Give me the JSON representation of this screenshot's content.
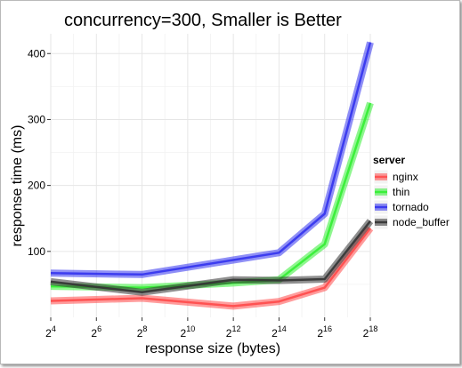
{
  "chart_data": {
    "type": "line",
    "title": "concurrency=300, Smaller is Better",
    "xlabel": "response size (bytes)",
    "ylabel": "response time (ms)",
    "x_scale": "log2",
    "x_ticks": [
      {
        "base": "2",
        "exp": "4",
        "value": 16
      },
      {
        "base": "2",
        "exp": "6",
        "value": 64
      },
      {
        "base": "2",
        "exp": "8",
        "value": 256
      },
      {
        "base": "2",
        "exp": "10",
        "value": 1024
      },
      {
        "base": "2",
        "exp": "12",
        "value": 4096
      },
      {
        "base": "2",
        "exp": "14",
        "value": 16384
      },
      {
        "base": "2",
        "exp": "16",
        "value": 65536
      },
      {
        "base": "2",
        "exp": "18",
        "value": 262144
      }
    ],
    "xlim": [
      16,
      262144
    ],
    "y_ticks": [
      100,
      200,
      300,
      400
    ],
    "ylim": [
      0,
      430
    ],
    "grid": true,
    "legend_title": "server",
    "legend_position": "right",
    "x": [
      16,
      256,
      4096,
      16384,
      65536,
      262144
    ],
    "series": [
      {
        "name": "nginx",
        "color": "#ff4a4a",
        "values": [
          25,
          29,
          17,
          24,
          45,
          135
        ]
      },
      {
        "name": "thin",
        "color": "#33ee33",
        "values": [
          47,
          45,
          52,
          57,
          111,
          325
        ]
      },
      {
        "name": "tornado",
        "color": "#3333ee",
        "values": [
          67,
          65,
          87,
          98,
          157,
          417
        ]
      },
      {
        "name": "node_buffer",
        "color": "#333333",
        "values": [
          54,
          38,
          57,
          56,
          58,
          146
        ]
      }
    ]
  }
}
